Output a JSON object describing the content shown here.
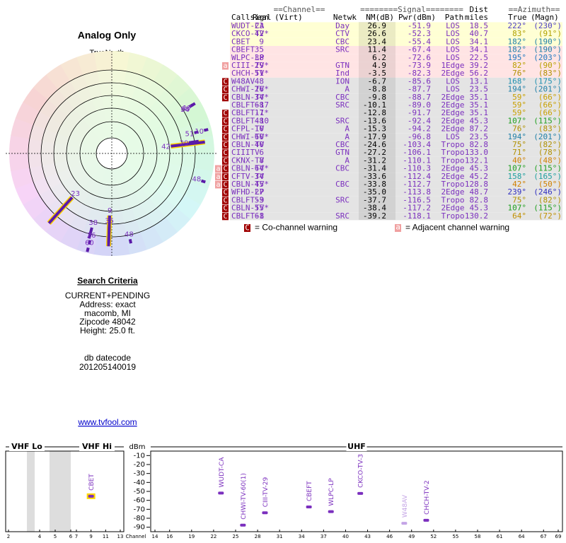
{
  "header": {
    "title": "Analog Only",
    "north": "TrueNorth",
    "n": "N"
  },
  "table": {
    "group_headers": {
      "channel": "==Channel==",
      "signal": "========Signal========",
      "dist": "Dist",
      "azimuth": "==Azimuth=="
    },
    "columns": {
      "call": "Callsign",
      "real": "Real",
      "virt": "(Virt)",
      "netwk": "Netwk",
      "nm": "NM(dB)",
      "pwr": "Pwr(dBm)",
      "path": "Path",
      "dist": "miles",
      "az": "True",
      "magn": "(Magn)"
    },
    "rows": [
      {
        "call": "WUDT-CA",
        "real": "23",
        "netwk": "Day",
        "nm": "26.9",
        "pwr": "-51.9",
        "path": "LOS",
        "dist": "18.5",
        "az": "222°",
        "magn": "(230°)",
        "bg": "#ffffd4",
        "azcolor": "#4b3cc8"
      },
      {
        "call": "CKCO-TV*",
        "real": "42",
        "netwk": "CTV",
        "nm": "26.6",
        "pwr": "-52.3",
        "path": "LOS",
        "dist": "40.7",
        "az": "83°",
        "magn": "(91°)",
        "bg": "#ffffd4",
        "azcolor": "#b0a000"
      },
      {
        "call": "CBET",
        "real": "9",
        "netwk": "CBC",
        "nm": "23.4",
        "pwr": "-55.4",
        "path": "LOS",
        "dist": "34.1",
        "az": "182°",
        "magn": "(190°)",
        "bg": "#ffffd4",
        "azcolor": "#2080a8"
      },
      {
        "call": "CBEFT",
        "real": "35",
        "netwk": "SRC",
        "nm": "11.4",
        "pwr": "-67.4",
        "path": "LOS",
        "dist": "34.1",
        "az": "182°",
        "magn": "(190°)",
        "bg": "#ffe4e4",
        "azcolor": "#2080a8"
      },
      {
        "call": "WLPC-LP",
        "real": "38",
        "nm": "6.2",
        "pwr": "-72.6",
        "path": "LOS",
        "dist": "22.5",
        "az": "195°",
        "magn": "(203°)",
        "bg": "#ffe4e4",
        "azcolor": "#2078c0"
      },
      {
        "call": "CIII-TV*",
        "real": "29",
        "netwk": "GTN",
        "nm": "4.9",
        "pwr": "-73.9",
        "path": "1Edge",
        "dist": "39.2",
        "az": "82°",
        "magn": "(90°)",
        "bg": "#ffe4e4",
        "azcolor": "#b8a000",
        "warn": [
          "a"
        ]
      },
      {
        "call": "CHCH-TV*",
        "real": "51",
        "netwk": "Ind",
        "nm": "-3.5",
        "pwr": "-82.3",
        "path": "2Edge",
        "dist": "56.2",
        "az": "76°",
        "magn": "(83°)",
        "bg": "#ffe4e4",
        "azcolor": "#b09000"
      },
      {
        "call": "W48AV",
        "real": "48",
        "netwk": "ION",
        "nm": "-6.7",
        "pwr": "-85.6",
        "path": "LOS",
        "dist": "13.1",
        "az": "168°",
        "magn": "(175°)",
        "bg": "#e4e4e4",
        "azcolor": "#2090b0",
        "warn": [
          "C"
        ]
      },
      {
        "call": "CHWI-TV*",
        "real": "26",
        "netwk": "A",
        "nm": "-8.8",
        "pwr": "-87.7",
        "path": "LOS",
        "dist": "23.5",
        "az": "194°",
        "magn": "(201°)",
        "bg": "#e4e4e4",
        "azcolor": "#2080a8",
        "warn": [
          "C"
        ]
      },
      {
        "call": "CBLN-TV*",
        "real": "34",
        "netwk": "CBC",
        "nm": "-9.8",
        "pwr": "-88.7",
        "path": "2Edge",
        "dist": "35.1",
        "az": "59°",
        "magn": "(66°)",
        "bg": "#e4e4e4",
        "azcolor": "#c8a000",
        "warn": [
          "C"
        ]
      },
      {
        "call": "CBLFT-17",
        "real": "68",
        "netwk": "SRC",
        "nm": "-10.1",
        "pwr": "-89.0",
        "path": "2Edge",
        "dist": "35.1",
        "az": "59°",
        "magn": "(66°)",
        "bg": "#e4e4e4",
        "azcolor": "#c8a000"
      },
      {
        "call": "CBLFT-1*",
        "real": "17",
        "nm": "-12.8",
        "pwr": "-91.7",
        "path": "2Edge",
        "dist": "35.1",
        "az": "59°",
        "magn": "(66°)",
        "bg": "#e4e4e4",
        "azcolor": "#c8a000",
        "warn": [
          "C"
        ]
      },
      {
        "call": "CBLFT-10",
        "real": "48",
        "netwk": "SRC",
        "nm": "-13.6",
        "pwr": "-92.4",
        "path": "2Edge",
        "dist": "45.3",
        "az": "107°",
        "magn": "(115°)",
        "bg": "#e4e4e4",
        "azcolor": "#20a020",
        "warn": [
          "C"
        ]
      },
      {
        "call": "CFPL-TV",
        "real": "10",
        "netwk": "A",
        "nm": "-15.3",
        "pwr": "-94.2",
        "path": "2Edge",
        "dist": "87.2",
        "az": "76°",
        "magn": "(83°)",
        "bg": "#e4e4e4",
        "azcolor": "#b09000",
        "warn": [
          "C"
        ]
      },
      {
        "call": "CHWI-TV*",
        "real": "60",
        "netwk": "A",
        "nm": "-17.9",
        "pwr": "-96.8",
        "path": "LOS",
        "dist": "23.5",
        "az": "194°",
        "magn": "(201°)",
        "bg": "#e4e4e4",
        "azcolor": "#2080a8",
        "warn": [
          "C"
        ]
      },
      {
        "call": "CBLN-TV",
        "real": "40",
        "netwk": "CBC",
        "nm": "-24.6",
        "pwr": "-103.4",
        "path": "Tropo",
        "dist": "82.8",
        "az": "75°",
        "magn": "(82°)",
        "bg": "#e4e4e4",
        "azcolor": "#b09000",
        "warn": [
          "C"
        ]
      },
      {
        "call": "CIIITV",
        "real": "6",
        "netwk": "GTN",
        "nm": "-27.2",
        "pwr": "-106.1",
        "path": "Tropo",
        "dist": "133.0",
        "az": "71°",
        "magn": "(78°)",
        "bg": "#e4e4e4",
        "azcolor": "#b09000",
        "warn": [
          "C"
        ]
      },
      {
        "call": "CKNX-TV",
        "real": "8",
        "netwk": "A",
        "nm": "-31.2",
        "pwr": "-110.1",
        "path": "Tropo",
        "dist": "132.1",
        "az": "40°",
        "magn": "(48°)",
        "bg": "#e4e4e4",
        "azcolor": "#d08000",
        "warn": [
          "C"
        ]
      },
      {
        "call": "CBLN-TV*",
        "real": "64",
        "netwk": "CBC",
        "nm": "-31.4",
        "pwr": "-110.3",
        "path": "2Edge",
        "dist": "45.3",
        "az": "107°",
        "magn": "(115°)",
        "bg": "#e4e4e4",
        "azcolor": "#20a020",
        "warn": [
          "a",
          "C"
        ]
      },
      {
        "call": "CFTV-TV",
        "real": "34",
        "nm": "-33.6",
        "pwr": "-112.4",
        "path": "2Edge",
        "dist": "45.2",
        "az": "158°",
        "magn": "(165°)",
        "bg": "#e4e4e4",
        "azcolor": "#20a0a0",
        "warn": [
          "a",
          "C"
        ]
      },
      {
        "call": "CBLN-TV*",
        "real": "45",
        "netwk": "CBC",
        "nm": "-33.8",
        "pwr": "-112.7",
        "path": "Tropo",
        "dist": "128.8",
        "az": "42°",
        "magn": "(50°)",
        "bg": "#e4e4e4",
        "azcolor": "#d08000",
        "warn": [
          "a",
          "C"
        ]
      },
      {
        "call": "WFHD-LP",
        "real": "27",
        "nm": "-35.0",
        "pwr": "-113.8",
        "path": "2Edge",
        "dist": "48.7",
        "az": "239°",
        "magn": "(246°)",
        "bg": "#e4e4e4",
        "azcolor": "#3030c0",
        "warn": [
          "C"
        ]
      },
      {
        "call": "CBLFT-9",
        "real": "53",
        "netwk": "SRC",
        "nm": "-37.7",
        "pwr": "-116.5",
        "path": "Tropo",
        "dist": "82.8",
        "az": "75°",
        "magn": "(82°)",
        "bg": "#e4e4e4",
        "azcolor": "#b09000",
        "warn": [
          "C"
        ]
      },
      {
        "call": "CBLN-TV*",
        "real": "55",
        "nm": "-38.4",
        "pwr": "-117.2",
        "path": "2Edge",
        "dist": "45.3",
        "az": "107°",
        "magn": "(115°)",
        "bg": "#e4e4e4",
        "azcolor": "#20a020",
        "warn": [
          "C"
        ]
      },
      {
        "call": "CBLFT-8",
        "real": "61",
        "netwk": "SRC",
        "nm": "-39.2",
        "pwr": "-118.1",
        "path": "Tropo",
        "dist": "130.2",
        "az": "64°",
        "magn": "(72°)",
        "bg": "#e4e4e4",
        "azcolor": "#c09000",
        "warn": [
          "C"
        ]
      }
    ]
  },
  "legend": {
    "co_mark": "C",
    "co_text": "= Co-channel warning",
    "adj_mark": "a",
    "adj_text": "= Adjacent channel warning"
  },
  "criteria": {
    "title": "Search Criteria",
    "lines": [
      "CURRENT+PENDING",
      "Address: exact",
      "macomb, MI",
      "Zipcode 48042",
      "Height: 25.0 ft."
    ],
    "db_label": "db datecode",
    "db_code": "201205140019"
  },
  "link": "www.tvfool.com",
  "chart_data": {
    "type": "scatter",
    "ylabel": "dBm",
    "xlabel": "Channel",
    "ylim": [
      -5,
      -95
    ],
    "yticks": [
      -10,
      -20,
      -30,
      -40,
      -50,
      -60,
      -70,
      -80,
      -90
    ],
    "bands": [
      {
        "name": "VHF Lo",
        "xlim": [
          2,
          6
        ],
        "xticks": [
          2,
          4,
          5,
          6
        ]
      },
      {
        "name": "VHF Hi",
        "xlim": [
          7,
          13
        ],
        "xticks": [
          7,
          9,
          11,
          13
        ]
      },
      {
        "name": "UHF",
        "xlim": [
          14,
          69
        ],
        "xticks": [
          14,
          16,
          19,
          22,
          25,
          28,
          31,
          34,
          37,
          40,
          43,
          46,
          49,
          52,
          55,
          58,
          61,
          64,
          67,
          69
        ]
      }
    ],
    "stations": [
      {
        "name": "CBET",
        "channel": 9,
        "value": -55.4,
        "color": "#7b2fbe",
        "outline": "#ffd700"
      },
      {
        "name": "WUDT-CA",
        "channel": 23,
        "value": -51.9,
        "color": "#7b2fbe"
      },
      {
        "name": "CHWI-TV-60(1)",
        "channel": 26,
        "value": -87.7,
        "color": "#7b2fbe"
      },
      {
        "name": "CIII-TV-29",
        "channel": 29,
        "value": -73.9,
        "color": "#7b2fbe"
      },
      {
        "name": "CBEFT",
        "channel": 35,
        "value": -67.4,
        "color": "#7b2fbe"
      },
      {
        "name": "WLPC-LP",
        "channel": 38,
        "value": -72.6,
        "color": "#7b2fbe"
      },
      {
        "name": "CKCO-TV-3",
        "channel": 42,
        "value": -52.3,
        "color": "#7b2fbe"
      },
      {
        "name": "W48AV",
        "channel": 48,
        "value": -85.6,
        "color": "#c4a4e6"
      },
      {
        "name": "CHCH-TV-2",
        "channel": 51,
        "value": -82.3,
        "color": "#7b2fbe"
      }
    ]
  }
}
